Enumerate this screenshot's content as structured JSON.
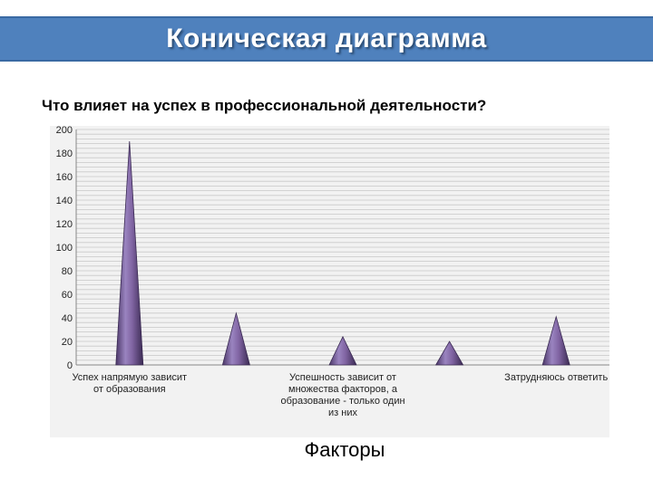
{
  "header": {
    "title": "Коническая диаграмма"
  },
  "chart_data": {
    "type": "bar",
    "bar_shape": "cone",
    "title": "Что влияет на успех в профессиональной деятельности?",
    "xlabel": "Факторы",
    "ylabel": "",
    "ylim": [
      0,
      200
    ],
    "yticks": [
      0,
      20,
      40,
      60,
      80,
      100,
      120,
      140,
      160,
      180,
      200
    ],
    "categories": [
      "Успех напрямую зависит от образования",
      "",
      "Успешность зависит от множества факторов, а образование - только один из них",
      "",
      "Затрудняюсь ответить"
    ],
    "values": [
      190,
      44,
      24,
      20,
      41
    ],
    "grid": true,
    "legend": "none",
    "colors": {
      "cone": "#8064a2",
      "cone_dark": "#4b3768",
      "grid": "#c8c8c8",
      "plot_bg": "#f2f2f2"
    }
  }
}
